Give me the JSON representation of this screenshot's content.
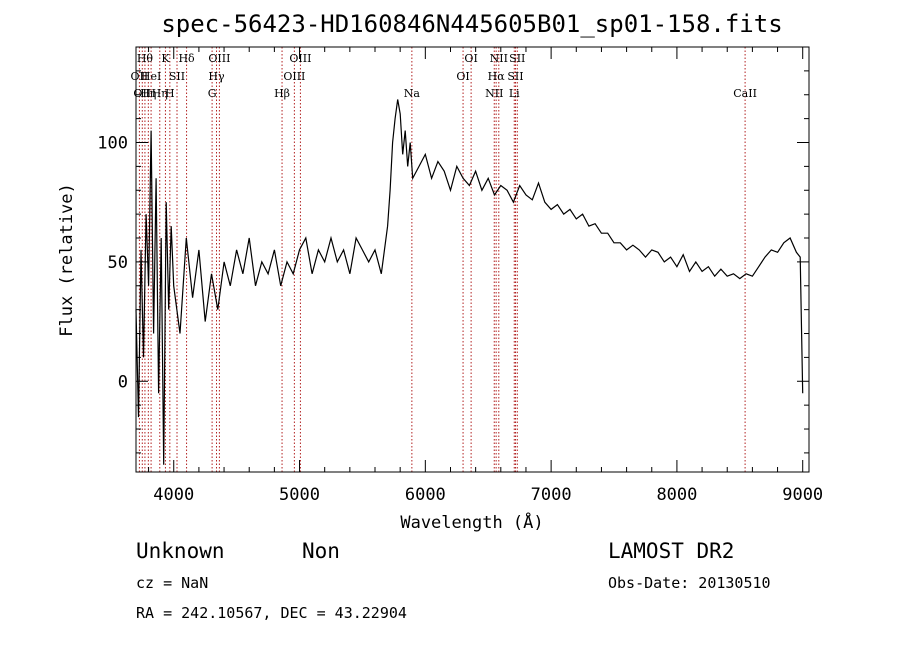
{
  "title": "spec-56423-HD160846N445605B01_sp01-158.fits",
  "xlabel": "Wavelength (Å)",
  "ylabel": "Flux (relative)",
  "info": {
    "class": "Unknown",
    "subclass": "Non",
    "survey": "LAMOST DR2",
    "cz": "cz = NaN",
    "obs_date": "Obs-Date: 20130510",
    "radec": "RA = 242.10567, DEC =  43.22904"
  },
  "line_marker_color": "#b22222",
  "chart_data": {
    "type": "line",
    "xlim": [
      3700,
      9050
    ],
    "ylim": [
      -38,
      140
    ],
    "x_ticks": [
      4000,
      5000,
      6000,
      7000,
      8000,
      9000
    ],
    "y_ticks": [
      0,
      50,
      100
    ],
    "grid": false,
    "series": [
      {
        "x": [
          3700,
          3720,
          3740,
          3760,
          3780,
          3800,
          3820,
          3840,
          3860,
          3880,
          3900,
          3920,
          3940,
          3960,
          3980,
          4000,
          4050,
          4100,
          4150,
          4200,
          4250,
          4300,
          4350,
          4400,
          4450,
          4500,
          4550,
          4600,
          4650,
          4700,
          4750,
          4800,
          4850,
          4900,
          4950,
          5000,
          5050,
          5100,
          5150,
          5200,
          5250,
          5300,
          5350,
          5400,
          5450,
          5500,
          5550,
          5600,
          5650,
          5700,
          5720,
          5740,
          5760,
          5780,
          5800,
          5820,
          5840,
          5860,
          5880,
          5900,
          5950,
          6000,
          6050,
          6100,
          6150,
          6200,
          6250,
          6300,
          6350,
          6400,
          6450,
          6500,
          6550,
          6600,
          6650,
          6700,
          6750,
          6800,
          6850,
          6900,
          6950,
          7000,
          7050,
          7100,
          7150,
          7200,
          7250,
          7300,
          7350,
          7400,
          7450,
          7500,
          7550,
          7600,
          7650,
          7700,
          7750,
          7800,
          7850,
          7900,
          7950,
          8000,
          8050,
          8100,
          8150,
          8200,
          8250,
          8300,
          8350,
          8400,
          8450,
          8500,
          8550,
          8600,
          8650,
          8700,
          8750,
          8800,
          8850,
          8900,
          8950,
          8980,
          9000
        ],
        "y": [
          30,
          -15,
          55,
          10,
          70,
          40,
          105,
          20,
          85,
          -5,
          60,
          -35,
          75,
          30,
          65,
          40,
          20,
          60,
          35,
          55,
          25,
          45,
          30,
          50,
          40,
          55,
          45,
          60,
          40,
          50,
          45,
          55,
          40,
          50,
          45,
          55,
          60,
          45,
          55,
          50,
          60,
          50,
          55,
          45,
          60,
          55,
          50,
          55,
          45,
          65,
          80,
          100,
          110,
          118,
          112,
          95,
          105,
          90,
          100,
          85,
          90,
          95,
          85,
          92,
          88,
          80,
          90,
          85,
          82,
          88,
          80,
          85,
          78,
          82,
          80,
          75,
          82,
          78,
          76,
          83,
          75,
          72,
          74,
          70,
          72,
          68,
          70,
          65,
          66,
          62,
          62,
          58,
          58,
          55,
          57,
          55,
          52,
          55,
          54,
          50,
          52,
          48,
          53,
          46,
          50,
          46,
          48,
          44,
          47,
          44,
          45,
          43,
          45,
          44,
          48,
          52,
          55,
          54,
          58,
          60,
          54,
          52,
          -5
        ]
      }
    ],
    "lines": [
      {
        "wl": 3727,
        "label": "OII",
        "row": 1
      },
      {
        "wl": 3750,
        "label": "OII",
        "row": 2
      },
      {
        "wl": 3771,
        "label": "Hθ",
        "row": 0
      },
      {
        "wl": 3798,
        "label": "Hη",
        "row": 2
      },
      {
        "wl": 3820,
        "label": "HeI",
        "row": 1
      },
      {
        "wl": 3889,
        "label": "Hη",
        "row": 2
      },
      {
        "wl": 3934,
        "label": "K",
        "row": 0
      },
      {
        "wl": 3969,
        "label": "H",
        "row": 2
      },
      {
        "wl": 4026,
        "label": "SII",
        "row": 1
      },
      {
        "wl": 4102,
        "label": "Hδ",
        "row": 0
      },
      {
        "wl": 4340,
        "label": "Hγ",
        "row": 1
      },
      {
        "wl": 4305,
        "label": "G",
        "row": 2
      },
      {
        "wl": 4363,
        "label": "OIII",
        "row": 0
      },
      {
        "wl": 4861,
        "label": "Hβ",
        "row": 2
      },
      {
        "wl": 4959,
        "label": "OIII",
        "row": 1
      },
      {
        "wl": 5007,
        "label": "OIII",
        "row": 0
      },
      {
        "wl": 5893,
        "label": "Na",
        "row": 2
      },
      {
        "wl": 6300,
        "label": "OI",
        "row": 1
      },
      {
        "wl": 6364,
        "label": "OI",
        "row": 0
      },
      {
        "wl": 6548,
        "label": "NII",
        "row": 2
      },
      {
        "wl": 6563,
        "label": "Hα",
        "row": 1
      },
      {
        "wl": 6584,
        "label": "NII",
        "row": 0
      },
      {
        "wl": 6707,
        "label": "Li",
        "row": 2
      },
      {
        "wl": 6717,
        "label": "SII",
        "row": 1
      },
      {
        "wl": 6731,
        "label": "SII",
        "row": 0
      },
      {
        "wl": 8542,
        "label": "CaII",
        "row": 2
      }
    ]
  }
}
